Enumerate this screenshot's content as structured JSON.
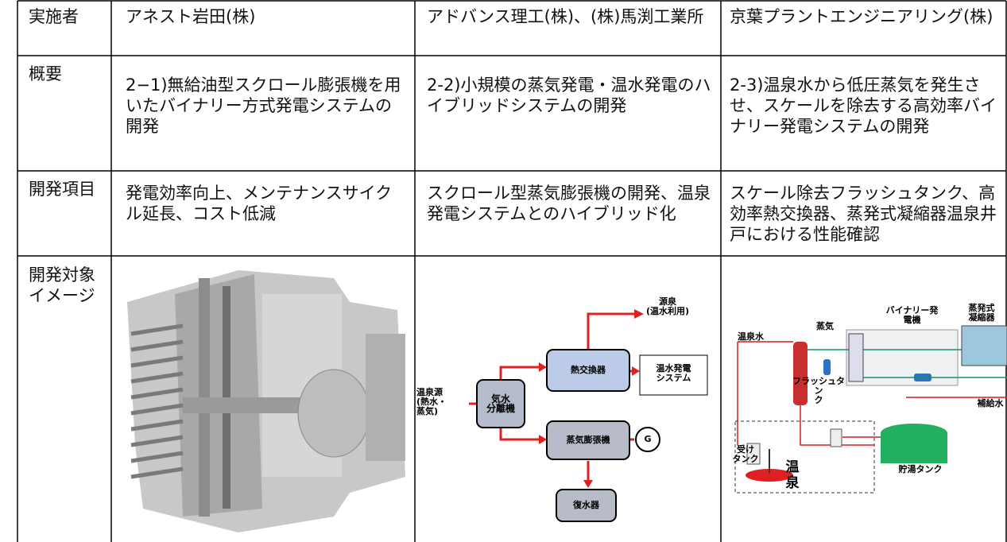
{
  "table": {
    "header": [
      "実施者",
      "アネスト岩田(株)",
      "アドバンス理工(株)、(株)馬渕工業所",
      "京葉プラントエンジニアリング(株)"
    ],
    "rows": [
      [
        "概要",
        "2−1)無給油型スクロール膨張機を用いたバイナリー方式発電システムの開発",
        "2-2)小規模の蒸気発電・温水発電のハイブリッドシステムの開発",
        "2-3)温泉水から低圧蒸気を発生させ、スケールを除去する高効率バイナリー発電システムの開発"
      ],
      [
        "開発項目",
        "発電効率向上、メンテナンスサイクル延長、コスト低減",
        "スクロール型蒸気膨張機の開発、温泉発電システムとのハイブリッド化",
        "スケール除去フラッシュタンク、高効率熱交換器、蒸発式凝縮器温泉井戸における性能確認"
      ],
      [
        "開発対象イメージ"
      ]
    ]
  },
  "flow_diagram": {
    "source": "温泉源\n(熱水・\n蒸気)",
    "separator": "気水\n分離機",
    "heat_exchanger": "熱交換器",
    "hot_water_power": "温水発電\nシステム",
    "expander": "蒸気膨張機",
    "generator": "G",
    "condenser": "復水器",
    "spring_use": "源泉\n(温水利用)"
  },
  "plant_diagram": {
    "condenser": "蒸発式\n凝縮器",
    "binary": "バイナリー発\n電機",
    "hot_spring_water": "温泉水",
    "steam": "蒸気",
    "flash_tank": "フラッシュタン\nク",
    "makeup_water": "補給水",
    "receiver_tank": "受け\nタンク",
    "hot_spring": "温\n泉",
    "storage_tank": "貯湯タンク"
  }
}
